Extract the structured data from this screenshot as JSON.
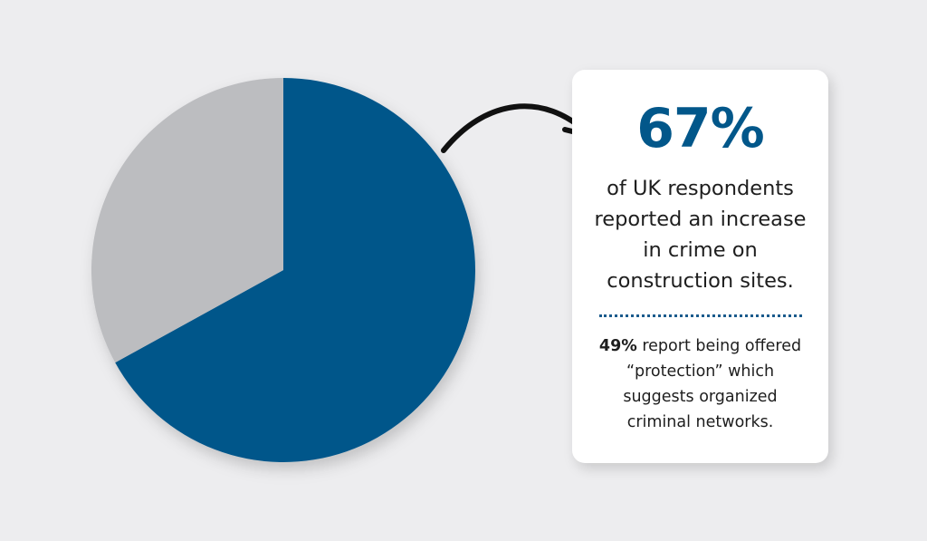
{
  "chart_data": {
    "type": "pie",
    "values": [
      67,
      33
    ],
    "colors": [
      "#02568a",
      "#bcbdc0"
    ],
    "start": "top",
    "direction": "clockwise"
  },
  "callout": {
    "headline": "67%",
    "text": "of UK respondents reported an increase in crime on construction sites.",
    "sub_bold": "49%",
    "sub_text": " report being offered “protection” which suggests organized criminal networks."
  },
  "colors": {
    "accent": "#02578a",
    "background": "#ededef"
  }
}
